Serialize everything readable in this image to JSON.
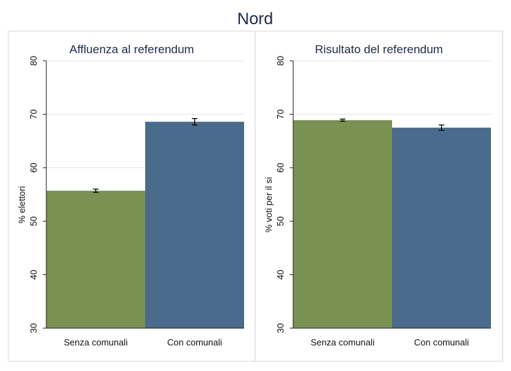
{
  "title": "Nord",
  "colors": {
    "senza": "#7a9154",
    "con": "#4a6b8b",
    "panel_border": "#d6d6d6",
    "grid": "#e4e4e4",
    "axis": "#222222"
  },
  "chart_data": [
    {
      "type": "bar",
      "title": "Affluenza al referendum",
      "ylabel": "% elettori",
      "xlabel": "",
      "categories": [
        "Senza comunali",
        "Con comunali"
      ],
      "values": [
        55.7,
        68.6
      ],
      "error_low": [
        55.4,
        68.0
      ],
      "error_high": [
        56.0,
        69.2
      ],
      "ylim": [
        30,
        80
      ],
      "yticks": [
        30,
        40,
        50,
        60,
        70,
        80
      ],
      "grid": true
    },
    {
      "type": "bar",
      "title": "Risultato del referendum",
      "ylabel": "% voti per il si",
      "xlabel": "",
      "categories": [
        "Senza comunali",
        "Con comunali"
      ],
      "values": [
        68.9,
        67.5
      ],
      "error_low": [
        68.7,
        67.0
      ],
      "error_high": [
        69.1,
        68.0
      ],
      "ylim": [
        30,
        80
      ],
      "yticks": [
        30,
        40,
        50,
        60,
        70,
        80
      ],
      "grid": true
    }
  ]
}
